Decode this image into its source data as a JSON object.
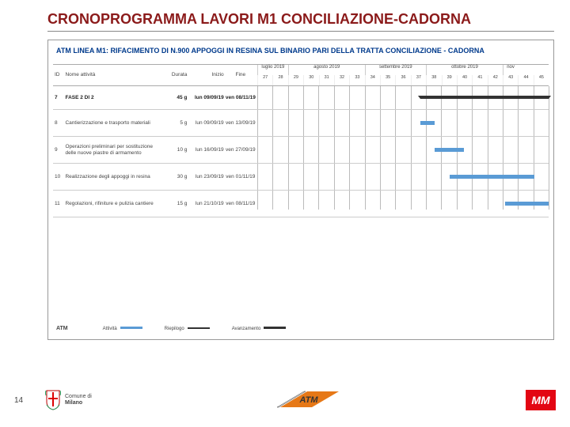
{
  "title": "CRONOPROGRAMMA LAVORI M1 CONCILIAZIONE-CADORNA",
  "chart_title": "ATM LINEA M1: RIFACIMENTO DI N.900 APPOGGI IN RESINA SUL BINARIO PARI DELLA TRATTA CONCILIAZIONE - CADORNA",
  "columns": {
    "id": "ID",
    "name": "Nome attività",
    "dur": "Durata",
    "start": "Inizio",
    "end": "Fine"
  },
  "months": [
    {
      "label": "luglio 2019",
      "weeks": 2
    },
    {
      "label": "agosto 2019",
      "weeks": 5
    },
    {
      "label": "settembre 2019",
      "weeks": 4
    },
    {
      "label": "ottobre 2019",
      "weeks": 5
    },
    {
      "label": "nov",
      "weeks": 1
    }
  ],
  "week_numbers": [
    "27",
    "28",
    "29",
    "30",
    "31",
    "32",
    "33",
    "34",
    "35",
    "36",
    "37",
    "38",
    "39",
    "40",
    "41",
    "42",
    "43",
    "44",
    "45"
  ],
  "rows": [
    {
      "id": "7",
      "name": "FASE 2 DI 2",
      "dur": "45 g",
      "start": "lun 09/09/19",
      "end": "ven 08/11/19",
      "phase": true,
      "bar": {
        "type": "summary",
        "left_pct": 56,
        "width_pct": 44
      }
    },
    {
      "id": "8",
      "name": "Cantierizzazione e trasporto materiali",
      "dur": "5 g",
      "start": "lun 09/09/19",
      "end": "ven 13/09/19",
      "tall": true,
      "bar": {
        "type": "task",
        "left_pct": 56,
        "width_pct": 5
      }
    },
    {
      "id": "9",
      "name": "Operazioni preliminari per sostituzione delle nuove piastre di armamento",
      "dur": "10 g",
      "start": "lun 16/09/19",
      "end": "ven 27/09/19",
      "tall": true,
      "bar": {
        "type": "task",
        "left_pct": 61,
        "width_pct": 10
      }
    },
    {
      "id": "10",
      "name": "Realizzazione degli appoggi in resina",
      "dur": "30 g",
      "start": "lun 23/09/19",
      "end": "ven 01/11/19",
      "tall": true,
      "bar": {
        "type": "task",
        "left_pct": 66,
        "width_pct": 29
      }
    },
    {
      "id": "11",
      "name": "Regolazioni, rifiniture e pulizia cantiere",
      "dur": "15 g",
      "start": "lun 21/10/19",
      "end": "ven 08/11/19",
      "tall": true,
      "bar": {
        "type": "task",
        "left_pct": 85,
        "width_pct": 15
      }
    }
  ],
  "legend": {
    "atm": "ATM",
    "attivita": "Attività",
    "riepilogo": "Riepilogo",
    "avanzamento": "Avanzamento"
  },
  "footer": {
    "page": "14",
    "milano_l1": "Comune di",
    "milano_l2": "Milano",
    "atm": "ATM",
    "mm": "MM"
  },
  "colors": {
    "title": "#8b1a1a",
    "chart_title": "#003a8c",
    "bar": "#5a9bd5",
    "mm_bg": "#e30613",
    "atm_orange": "#e67817"
  }
}
